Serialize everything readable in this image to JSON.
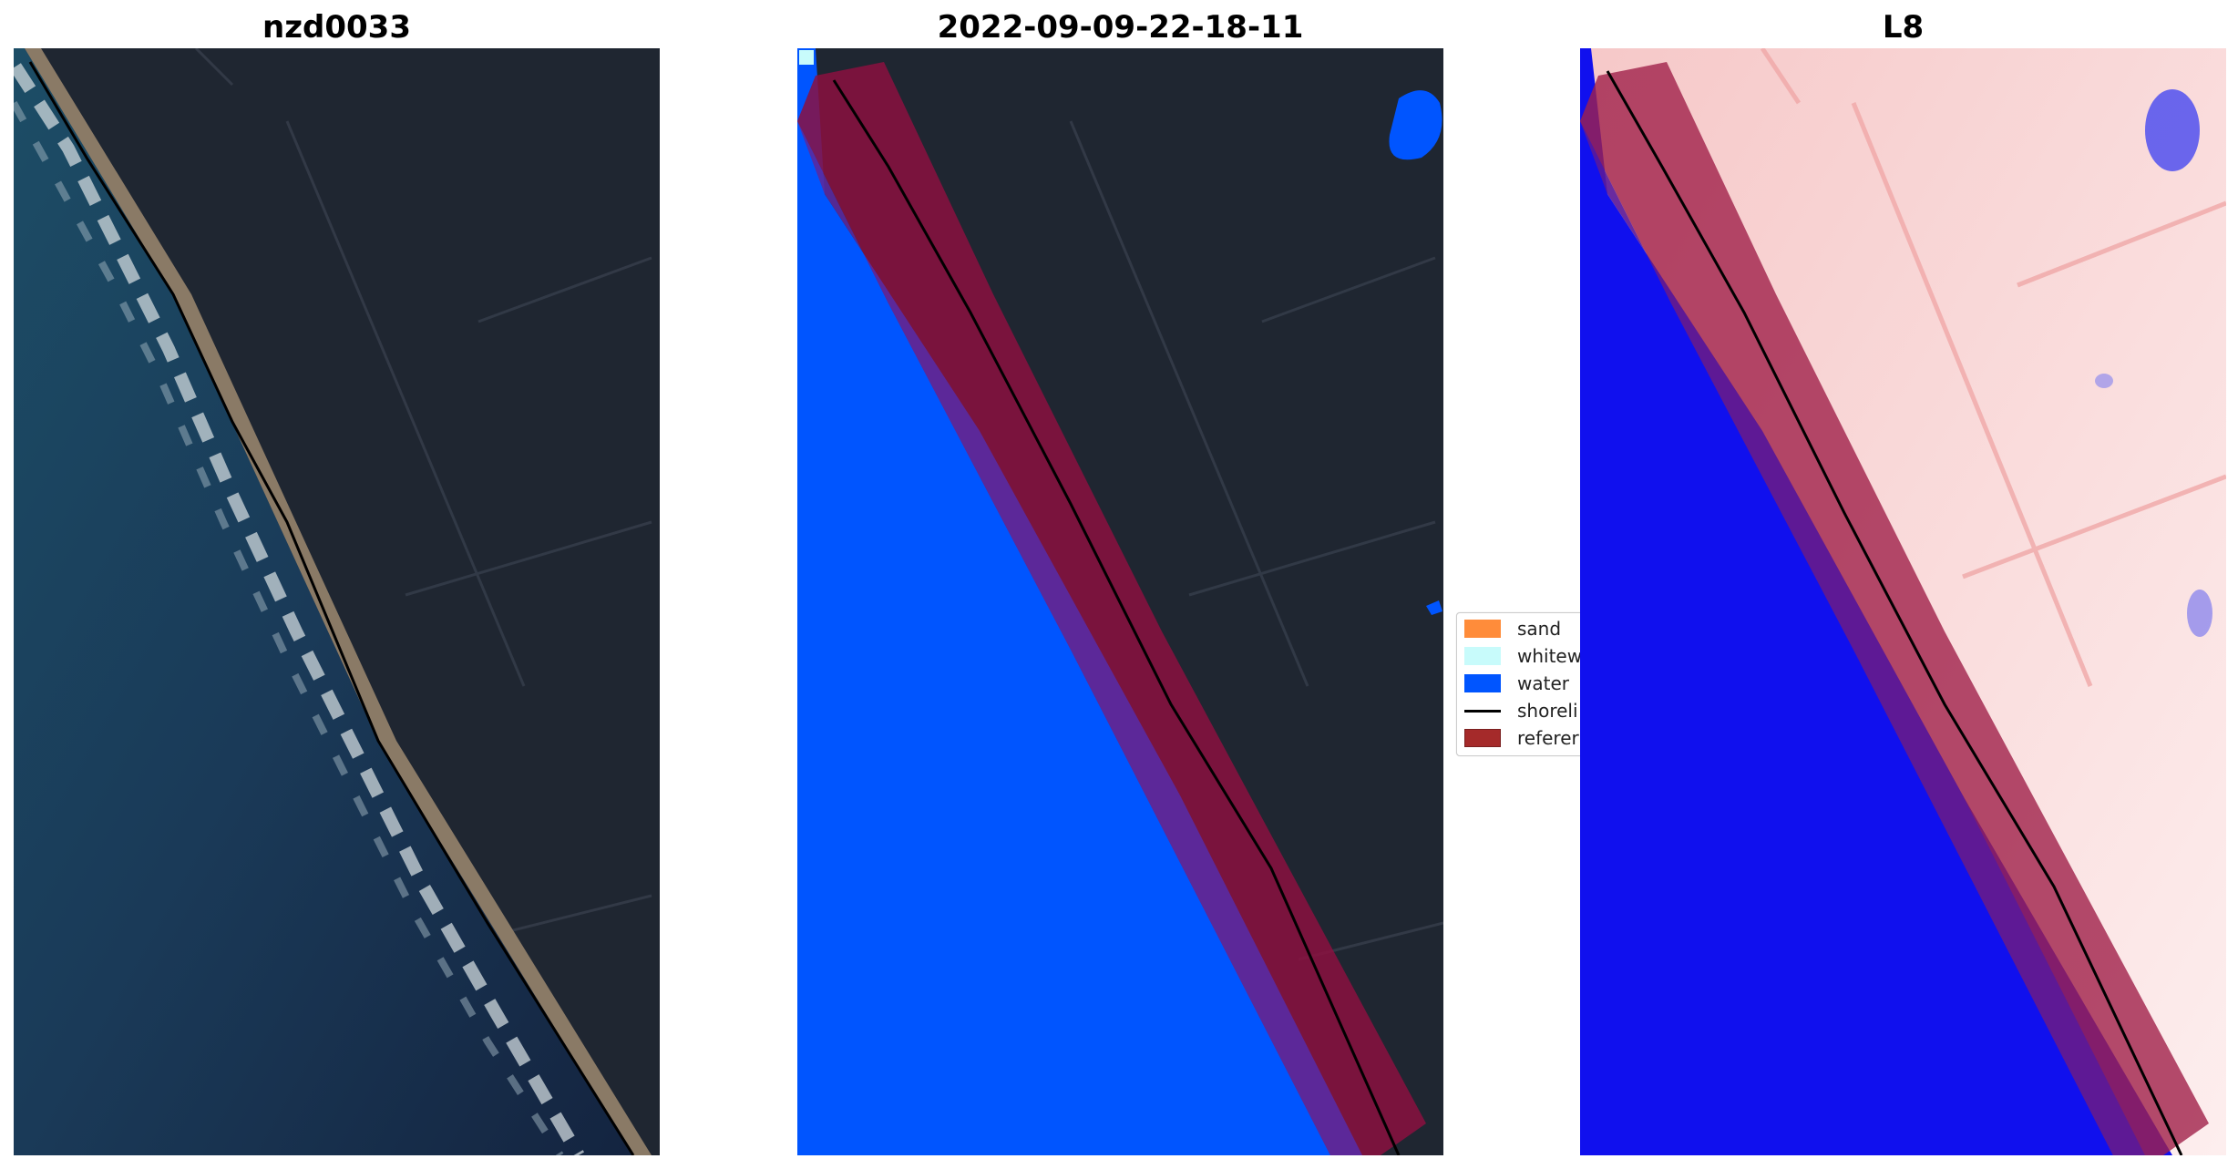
{
  "titles": {
    "panel1": "nzd0033",
    "panel2": "2022-09-09-22-18-11",
    "panel3": "L8"
  },
  "legend": {
    "items": [
      {
        "label": "sand",
        "color": "#ff8c3a"
      },
      {
        "label": "whitew",
        "color": "#c8fbfb"
      },
      {
        "label": "water",
        "color": "#0055ff"
      },
      {
        "label": "shoreli",
        "color": "#000000"
      },
      {
        "label": "referer",
        "color": "#a52a2a"
      }
    ]
  },
  "colors": {
    "water_class": "#0055ff",
    "reference_buffer": "#a01030",
    "land_dark": "#1f2631",
    "ocean_rgb": "#1a3550",
    "index_water": "#1010ee",
    "index_land": "#fbe2e2"
  }
}
